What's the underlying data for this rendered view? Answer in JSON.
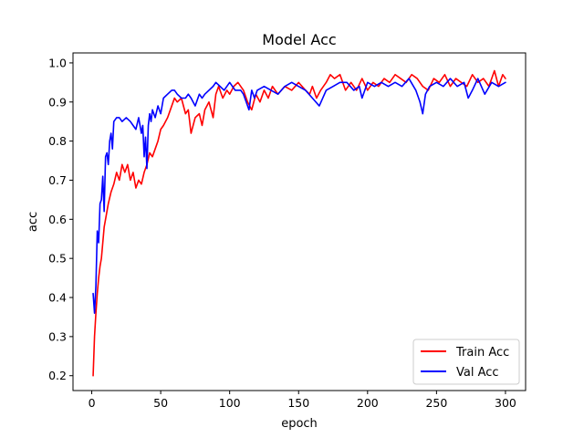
{
  "chart_data": {
    "type": "line",
    "title": "Model Acc",
    "xlabel": "epoch",
    "ylabel": "acc",
    "xlim": [
      -13.6,
      314.6
    ],
    "ylim": [
      0.162,
      1.0255
    ],
    "xticks": [
      0,
      50,
      100,
      150,
      200,
      250,
      300
    ],
    "xtick_labels": [
      "0",
      "50",
      "100",
      "150",
      "200",
      "250",
      "300"
    ],
    "yticks": [
      0.2,
      0.3,
      0.4,
      0.5,
      0.6,
      0.7,
      0.8,
      0.9,
      1.0
    ],
    "ytick_labels": [
      "0.2",
      "0.3",
      "0.4",
      "0.5",
      "0.6",
      "0.7",
      "0.8",
      "0.9",
      "1.0"
    ],
    "grid": false,
    "legend_position": "lower-right",
    "series": [
      {
        "name": "Train Acc",
        "color": "#ff0000",
        "x": [
          1,
          2,
          3,
          4,
          5,
          6,
          7,
          8,
          9,
          10,
          12,
          14,
          16,
          18,
          20,
          22,
          24,
          26,
          28,
          30,
          32,
          34,
          36,
          38,
          40,
          42,
          44,
          46,
          48,
          50,
          52,
          55,
          58,
          60,
          62,
          65,
          68,
          70,
          72,
          75,
          78,
          80,
          82,
          85,
          88,
          90,
          92,
          95,
          98,
          100,
          103,
          106,
          110,
          113,
          116,
          119,
          122,
          125,
          128,
          131,
          135,
          140,
          145,
          150,
          155,
          158,
          160,
          163,
          166,
          170,
          173,
          176,
          180,
          184,
          188,
          192,
          196,
          200,
          204,
          208,
          212,
          216,
          220,
          224,
          228,
          232,
          236,
          240,
          244,
          248,
          252,
          256,
          260,
          264,
          268,
          272,
          276,
          280,
          284,
          288,
          292,
          295,
          298,
          300
        ],
        "y": [
          0.2,
          0.3,
          0.36,
          0.41,
          0.45,
          0.48,
          0.5,
          0.54,
          0.58,
          0.6,
          0.64,
          0.67,
          0.69,
          0.72,
          0.7,
          0.74,
          0.72,
          0.74,
          0.7,
          0.72,
          0.68,
          0.7,
          0.69,
          0.72,
          0.74,
          0.77,
          0.76,
          0.78,
          0.8,
          0.83,
          0.84,
          0.86,
          0.89,
          0.91,
          0.9,
          0.91,
          0.87,
          0.88,
          0.82,
          0.86,
          0.87,
          0.84,
          0.88,
          0.9,
          0.86,
          0.92,
          0.94,
          0.91,
          0.93,
          0.92,
          0.94,
          0.95,
          0.93,
          0.9,
          0.88,
          0.92,
          0.9,
          0.93,
          0.91,
          0.94,
          0.92,
          0.94,
          0.93,
          0.95,
          0.93,
          0.92,
          0.94,
          0.91,
          0.93,
          0.95,
          0.97,
          0.96,
          0.97,
          0.93,
          0.95,
          0.93,
          0.96,
          0.93,
          0.95,
          0.94,
          0.96,
          0.95,
          0.97,
          0.96,
          0.95,
          0.97,
          0.96,
          0.94,
          0.93,
          0.96,
          0.95,
          0.97,
          0.94,
          0.96,
          0.95,
          0.94,
          0.97,
          0.95,
          0.96,
          0.94,
          0.98,
          0.94,
          0.97,
          0.96
        ]
      },
      {
        "name": "Val Acc",
        "color": "#0000ff",
        "x": [
          1,
          2,
          3,
          4,
          5,
          6,
          7,
          8,
          9,
          10,
          11,
          12,
          13,
          14,
          15,
          16,
          18,
          20,
          22,
          25,
          28,
          30,
          32,
          34,
          36,
          37,
          38,
          39,
          40,
          41,
          42,
          43,
          44,
          46,
          48,
          50,
          52,
          55,
          58,
          60,
          62,
          65,
          68,
          70,
          72,
          75,
          78,
          80,
          82,
          85,
          88,
          90,
          93,
          96,
          100,
          104,
          108,
          110,
          112,
          114,
          116,
          118,
          120,
          125,
          130,
          135,
          140,
          145,
          150,
          155,
          160,
          165,
          170,
          175,
          180,
          185,
          190,
          194,
          196,
          200,
          205,
          210,
          215,
          220,
          225,
          230,
          235,
          238,
          240,
          242,
          245,
          250,
          255,
          260,
          265,
          270,
          273,
          276,
          280,
          285,
          290,
          295,
          300
        ],
        "y": [
          0.41,
          0.36,
          0.43,
          0.57,
          0.54,
          0.64,
          0.65,
          0.71,
          0.62,
          0.76,
          0.77,
          0.74,
          0.8,
          0.82,
          0.78,
          0.85,
          0.86,
          0.86,
          0.85,
          0.86,
          0.85,
          0.84,
          0.83,
          0.86,
          0.82,
          0.84,
          0.76,
          0.81,
          0.73,
          0.84,
          0.87,
          0.85,
          0.88,
          0.86,
          0.89,
          0.87,
          0.91,
          0.92,
          0.93,
          0.93,
          0.92,
          0.91,
          0.91,
          0.92,
          0.91,
          0.89,
          0.92,
          0.91,
          0.92,
          0.93,
          0.94,
          0.95,
          0.94,
          0.93,
          0.95,
          0.93,
          0.93,
          0.92,
          0.9,
          0.88,
          0.93,
          0.91,
          0.93,
          0.94,
          0.93,
          0.92,
          0.94,
          0.95,
          0.94,
          0.93,
          0.91,
          0.89,
          0.93,
          0.94,
          0.95,
          0.95,
          0.93,
          0.94,
          0.91,
          0.95,
          0.94,
          0.95,
          0.94,
          0.95,
          0.94,
          0.96,
          0.93,
          0.9,
          0.87,
          0.92,
          0.94,
          0.95,
          0.94,
          0.96,
          0.94,
          0.95,
          0.91,
          0.93,
          0.96,
          0.92,
          0.95,
          0.94,
          0.95
        ]
      }
    ]
  }
}
